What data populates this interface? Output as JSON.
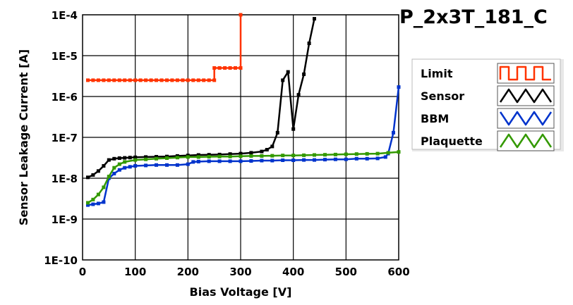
{
  "chart_data": {
    "type": "line",
    "title": "P_2x3T_181_C",
    "xlabel": "Bias Voltage [V]",
    "ylabel": "Sensor Leakage Current [A]",
    "xlim": [
      0,
      600
    ],
    "ylim": [
      1e-10,
      0.0001
    ],
    "yscale": "log",
    "grid": true,
    "legend_position": "right",
    "x_ticks": [
      0,
      100,
      200,
      300,
      400,
      500,
      600
    ],
    "x_tick_labels": [
      "0",
      "100",
      "200",
      "300",
      "400",
      "500",
      "600"
    ],
    "y_ticks": [
      1e-10,
      1e-09,
      1e-08,
      1e-07,
      1e-06,
      1e-05,
      0.0001
    ],
    "y_tick_labels": [
      "1E-10",
      "1E-9",
      "1E-8",
      "1E-7",
      "1E-6",
      "1E-5",
      "1E-4"
    ],
    "series": [
      {
        "name": "Limit",
        "color": "#ff3300",
        "x": [
          10,
          20,
          30,
          40,
          50,
          60,
          70,
          80,
          90,
          100,
          110,
          120,
          130,
          140,
          150,
          160,
          170,
          180,
          190,
          200,
          210,
          220,
          230,
          240,
          250,
          250,
          260,
          270,
          280,
          290,
          300,
          300
        ],
        "y": [
          2.5e-06,
          2.5e-06,
          2.5e-06,
          2.5e-06,
          2.5e-06,
          2.5e-06,
          2.5e-06,
          2.5e-06,
          2.5e-06,
          2.5e-06,
          2.5e-06,
          2.5e-06,
          2.5e-06,
          2.5e-06,
          2.5e-06,
          2.5e-06,
          2.5e-06,
          2.5e-06,
          2.5e-06,
          2.5e-06,
          2.5e-06,
          2.5e-06,
          2.5e-06,
          2.5e-06,
          2.5e-06,
          5e-06,
          5e-06,
          5e-06,
          5e-06,
          5e-06,
          5e-06,
          0.0001
        ]
      },
      {
        "name": "Sensor",
        "color": "#000000",
        "x": [
          10,
          20,
          30,
          40,
          50,
          60,
          70,
          80,
          90,
          100,
          120,
          140,
          160,
          180,
          200,
          220,
          240,
          260,
          280,
          300,
          320,
          340,
          350,
          360,
          370,
          380,
          390,
          400,
          410,
          420,
          430,
          440
        ],
        "y": [
          1.05e-08,
          1.2e-08,
          1.5e-08,
          2e-08,
          2.8e-08,
          3e-08,
          3.1e-08,
          3.15e-08,
          3.2e-08,
          3.25e-08,
          3.3e-08,
          3.35e-08,
          3.4e-08,
          3.5e-08,
          3.6e-08,
          3.7e-08,
          3.75e-08,
          3.8e-08,
          3.9e-08,
          4e-08,
          4.2e-08,
          4.5e-08,
          5e-08,
          6e-08,
          1.3e-07,
          2.5e-06,
          4e-06,
          1.6e-07,
          1.1e-06,
          3.5e-06,
          2e-05,
          8e-05
        ]
      },
      {
        "name": "BBM",
        "color": "#0033cc",
        "x": [
          10,
          20,
          30,
          40,
          50,
          60,
          70,
          80,
          90,
          100,
          120,
          140,
          160,
          180,
          200,
          210,
          220,
          240,
          260,
          280,
          300,
          320,
          340,
          360,
          380,
          400,
          420,
          440,
          460,
          480,
          500,
          520,
          540,
          560,
          575,
          580,
          590,
          600
        ],
        "y": [
          2.2e-09,
          2.3e-09,
          2.4e-09,
          2.6e-09,
          1e-08,
          1.3e-08,
          1.6e-08,
          1.8e-08,
          1.9e-08,
          2e-08,
          2.05e-08,
          2.1e-08,
          2.1e-08,
          2.1e-08,
          2.2e-08,
          2.5e-08,
          2.55e-08,
          2.6e-08,
          2.6e-08,
          2.6e-08,
          2.6e-08,
          2.65e-08,
          2.7e-08,
          2.7e-08,
          2.75e-08,
          2.75e-08,
          2.8e-08,
          2.8e-08,
          2.85e-08,
          2.9e-08,
          2.9e-08,
          3e-08,
          3e-08,
          3.05e-08,
          3.3e-08,
          4e-08,
          1.3e-07,
          1.7e-06
        ]
      },
      {
        "name": "Plaquette",
        "color": "#339900",
        "x": [
          10,
          20,
          30,
          40,
          50,
          60,
          70,
          80,
          100,
          120,
          140,
          160,
          180,
          200,
          220,
          240,
          260,
          280,
          300,
          320,
          340,
          360,
          380,
          400,
          420,
          440,
          460,
          480,
          500,
          520,
          540,
          560,
          580,
          600
        ],
        "y": [
          2.5e-09,
          3e-09,
          4e-09,
          6e-09,
          1.1e-08,
          1.8e-08,
          2.2e-08,
          2.5e-08,
          2.8e-08,
          2.9e-08,
          3e-08,
          3.1e-08,
          3.2e-08,
          3.3e-08,
          3.3e-08,
          3.35e-08,
          3.4e-08,
          3.4e-08,
          3.45e-08,
          3.5e-08,
          3.5e-08,
          3.55e-08,
          3.6e-08,
          3.6e-08,
          3.65e-08,
          3.7e-08,
          3.75e-08,
          3.8e-08,
          3.85e-08,
          3.9e-08,
          3.95e-08,
          4e-08,
          4.2e-08,
          4.4e-08
        ]
      }
    ]
  }
}
